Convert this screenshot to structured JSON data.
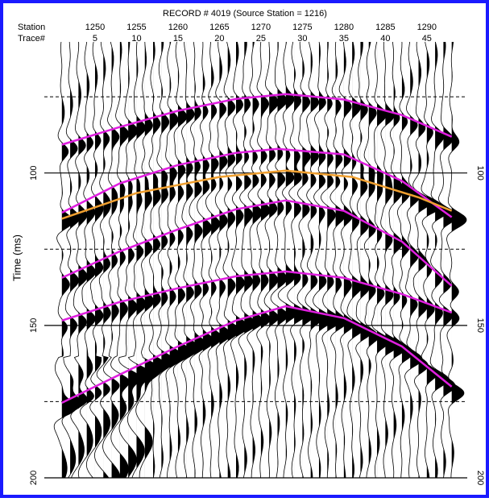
{
  "chart_data": {
    "type": "line",
    "title": "RECORD # 4019 (Source Station = 1216)",
    "x_row_labels": [
      "Station",
      "Trace#"
    ],
    "station_ticks": [
      1250,
      1255,
      1260,
      1265,
      1270,
      1275,
      1280,
      1285,
      1290
    ],
    "xticks": [
      5,
      10,
      15,
      20,
      25,
      30,
      35,
      40,
      45
    ],
    "xlim": [
      0,
      49
    ],
    "ylabel": "Time (ms)",
    "ylim": [
      57,
      200
    ],
    "yticks": [
      100,
      150,
      200
    ],
    "minor_yticks": [
      75,
      125,
      175
    ],
    "y_inverted": true,
    "grid": true,
    "series": [
      {
        "color": "#e01ee0",
        "x": [
          1,
          8,
          15,
          22,
          28,
          35,
          42,
          48
        ],
        "values": [
          90.7,
          84.9,
          79.6,
          75.7,
          74.1,
          75.9,
          81,
          88.1
        ]
      },
      {
        "color": "#e01ee0",
        "x": [
          1,
          8,
          15,
          22,
          27,
          35,
          42,
          48
        ],
        "values": [
          113,
          103.4,
          97.4,
          93.4,
          92.1,
          93.9,
          102.6,
          114.5
        ]
      },
      {
        "color": "#f0a030",
        "x": [
          1,
          10,
          20,
          28,
          36,
          44,
          48
        ],
        "values": [
          115,
          106.6,
          101.3,
          99.2,
          101.3,
          108,
          112.4
        ]
      },
      {
        "color": "#e01ee0",
        "x": [
          1,
          8,
          15,
          22,
          28,
          35,
          42,
          48
        ],
        "values": [
          134.4,
          125.7,
          118.5,
          111.9,
          109,
          112.4,
          122.5,
          137
        ]
      },
      {
        "color": "#e01ee0",
        "x": [
          1,
          8,
          15,
          22,
          28,
          35,
          42,
          48
        ],
        "values": [
          148.4,
          142.3,
          137.8,
          133.9,
          132.3,
          134.4,
          139.7,
          145.8
        ]
      },
      {
        "color": "#e01ee0",
        "x": [
          1,
          8,
          15,
          22,
          28,
          35,
          42,
          48
        ],
        "values": [
          175.4,
          166.1,
          156.9,
          148.4,
          143.7,
          147.6,
          156.9,
          170.1
        ]
      }
    ]
  }
}
